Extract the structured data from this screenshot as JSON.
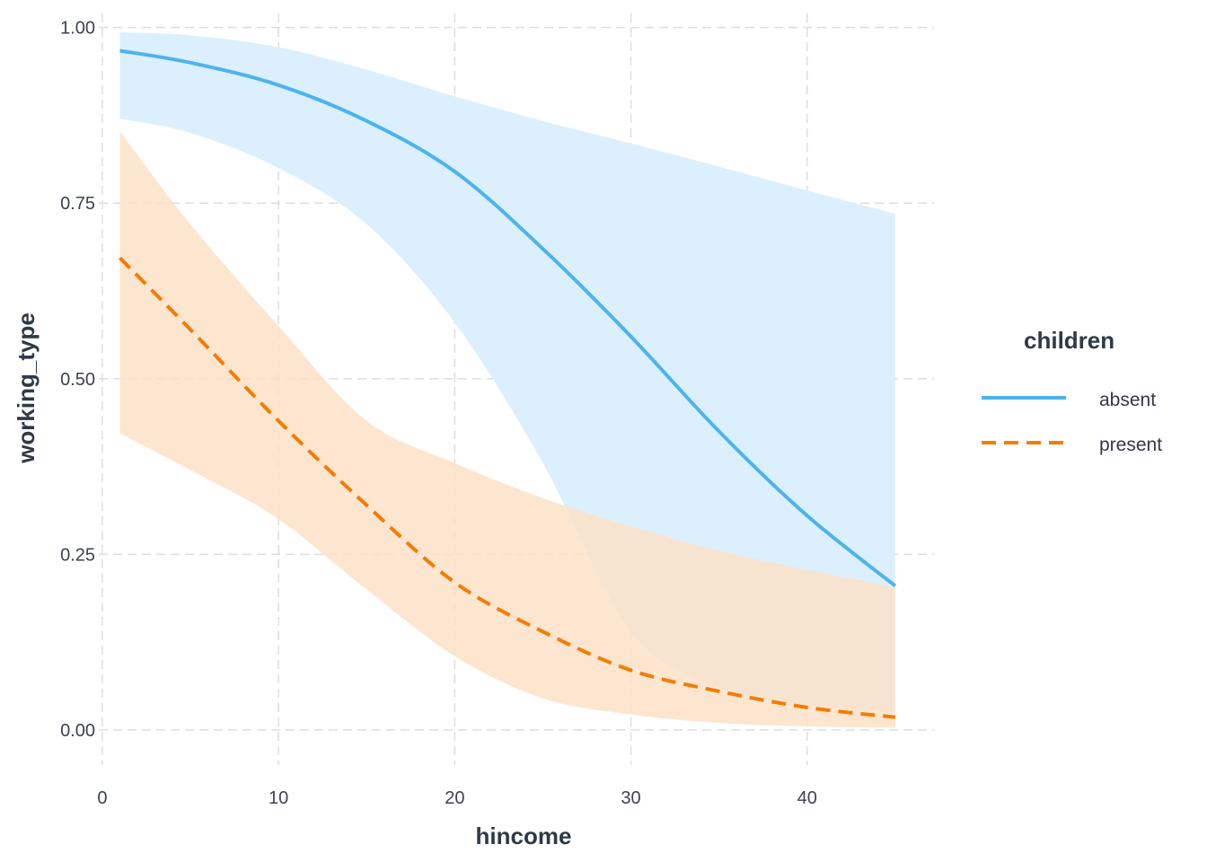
{
  "chart_data": {
    "type": "line",
    "xlabel": "hincome",
    "ylabel": "working_type",
    "xlim": [
      -0.2,
      47.2
    ],
    "ylim": [
      -0.05,
      1.02
    ],
    "x_ticks": [
      0,
      10,
      20,
      30,
      40
    ],
    "y_ticks": [
      0.0,
      0.25,
      0.5,
      0.75,
      1.0
    ],
    "x_tick_labels": [
      "0",
      "10",
      "20",
      "30",
      "40"
    ],
    "y_tick_labels": [
      "0.00",
      "0.25",
      "0.50",
      "0.75",
      "1.00"
    ],
    "grid": true,
    "legend": {
      "title": "children",
      "position": "right"
    },
    "x": [
      1,
      5,
      10,
      15,
      20,
      25,
      30,
      35,
      40,
      45
    ],
    "series": [
      {
        "name": "absent",
        "color": "#4db3ee",
        "band_color": "#dbf0fc",
        "line_style": "solid",
        "values": [
          0.967,
          0.95,
          0.918,
          0.867,
          0.795,
          0.685,
          0.56,
          0.425,
          0.305,
          0.205
        ],
        "lower": [
          0.87,
          0.85,
          0.8,
          0.72,
          0.58,
          0.38,
          0.14,
          0.06,
          0.035,
          0.025
        ],
        "upper": [
          0.993,
          0.989,
          0.972,
          0.94,
          0.902,
          0.867,
          0.835,
          0.802,
          0.768,
          0.735
        ]
      },
      {
        "name": "present",
        "color": "#f57c00",
        "band_color": "#fde1c6",
        "line_style": "dashed",
        "values": [
          0.672,
          0.57,
          0.44,
          0.32,
          0.21,
          0.14,
          0.085,
          0.055,
          0.032,
          0.018
        ],
        "lower": [
          0.422,
          0.37,
          0.3,
          0.2,
          0.105,
          0.045,
          0.022,
          0.01,
          0.005,
          0.003
        ],
        "upper": [
          0.852,
          0.72,
          0.575,
          0.44,
          0.38,
          0.33,
          0.29,
          0.255,
          0.228,
          0.203
        ]
      }
    ]
  }
}
